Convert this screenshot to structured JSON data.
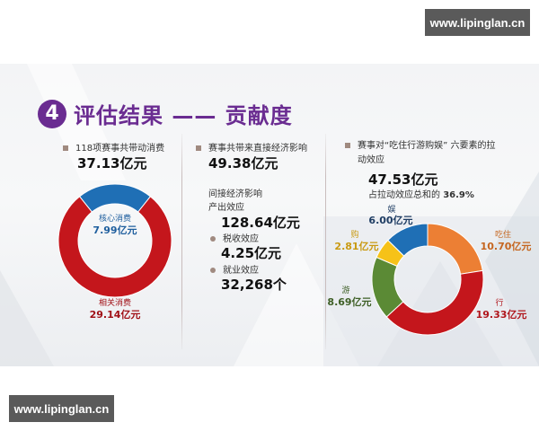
{
  "watermarks": {
    "top": "www.lipinglan.cn",
    "bottom": "www.lipinglan.cn"
  },
  "slide": {
    "section_number": "4",
    "title": "评估结果 —— 贡献度",
    "colors": {
      "accent": "#6a2c91",
      "bullet": "#a08a80"
    },
    "col1": {
      "label": "118项赛事共带动消费",
      "total": "37.13亿元"
    },
    "col2": {
      "direct_label": "赛事共带来直接经济影响",
      "direct_value": "49.38亿元",
      "indirect_heading": "间接经济影响",
      "output_label": "产出效应",
      "output_value": "128.64亿元",
      "tax_label": "税收效应",
      "tax_value": "4.25亿元",
      "jobs_label": "就业效应",
      "jobs_value": "32,268个"
    },
    "col3": {
      "label_line1": "赛事对“吃住行游购娱” 六要素的拉",
      "label_line2": "动效应",
      "total": "47.53亿元",
      "share_prefix": "占拉动效应总和的",
      "share_value": "36.9%"
    }
  },
  "chart_data": [
    {
      "type": "pie",
      "style": "donut",
      "title": "118项赛事共带动消费 37.13亿元",
      "categories": [
        "核心消费",
        "相关消费"
      ],
      "values": [
        7.99,
        29.14
      ],
      "value_labels": [
        "7.99亿元",
        "29.14亿元"
      ],
      "unit": "亿元",
      "colors": [
        "#1f6fb5",
        "#c4161c"
      ],
      "label_colors": [
        "#1f5f9e",
        "#a01016"
      ]
    },
    {
      "type": "pie",
      "style": "donut",
      "title": "赛事对“吃住行游购娱”六要素的拉动效应 47.53亿元",
      "categories": [
        "吃住",
        "行",
        "游",
        "购",
        "娱"
      ],
      "values": [
        10.7,
        19.33,
        8.69,
        2.81,
        6.0
      ],
      "value_labels": [
        "10.70亿元",
        "19.33亿元",
        "8.69亿元",
        "2.81亿元",
        "6.00亿元"
      ],
      "unit": "亿元",
      "colors": [
        "#ec7f34",
        "#c4161c",
        "#5b8a35",
        "#f6c218",
        "#1f6fb5"
      ],
      "label_colors": [
        "#c5651f",
        "#b0161c",
        "#3e5f26",
        "#c99a12",
        "#1f3d63"
      ]
    }
  ]
}
